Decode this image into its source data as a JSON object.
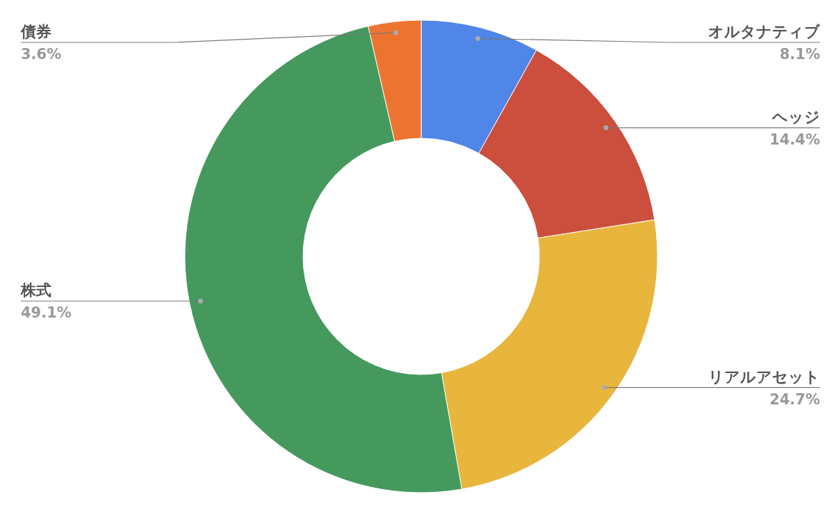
{
  "chart_data": {
    "type": "donut",
    "categories": [
      "オルタナティブ",
      "ヘッジ",
      "リアルアセット",
      "株式",
      "債券"
    ],
    "values": [
      8.1,
      14.4,
      24.7,
      49.1,
      3.6
    ],
    "value_labels": [
      "8.1%",
      "14.4%",
      "24.7%",
      "49.1%",
      "3.6%"
    ],
    "colors": [
      "#4f86e8",
      "#cc4f3e",
      "#e8b63d",
      "#45995d",
      "#ec7430"
    ]
  }
}
